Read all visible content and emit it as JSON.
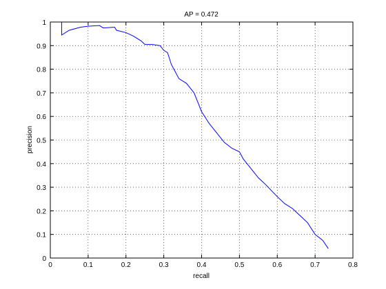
{
  "chart_data": {
    "type": "line",
    "title": "AP = 0.472",
    "xlabel": "recall",
    "ylabel": "precision",
    "x": [
      0.03,
      0.03,
      0.05,
      0.08,
      0.1,
      0.13,
      0.14,
      0.17,
      0.175,
      0.2,
      0.22,
      0.24,
      0.25,
      0.27,
      0.29,
      0.3,
      0.31,
      0.32,
      0.33,
      0.34,
      0.36,
      0.38,
      0.39,
      0.4,
      0.42,
      0.44,
      0.46,
      0.48,
      0.5,
      0.51,
      0.53,
      0.55,
      0.57,
      0.6,
      0.62,
      0.64,
      0.66,
      0.68,
      0.7,
      0.72,
      0.735
    ],
    "values": [
      1.0,
      0.945,
      0.965,
      0.978,
      0.982,
      0.985,
      0.975,
      0.978,
      0.965,
      0.955,
      0.94,
      0.92,
      0.905,
      0.905,
      0.9,
      0.88,
      0.87,
      0.82,
      0.79,
      0.76,
      0.74,
      0.7,
      0.66,
      0.62,
      0.57,
      0.53,
      0.49,
      0.465,
      0.45,
      0.42,
      0.38,
      0.34,
      0.31,
      0.26,
      0.23,
      0.21,
      0.18,
      0.15,
      0.1,
      0.075,
      0.04
    ],
    "color": "#0000ff",
    "xlim": [
      0,
      0.8
    ],
    "xticks": [
      0,
      0.1,
      0.2,
      0.3,
      0.4,
      0.5,
      0.6,
      0.7,
      0.8
    ],
    "ylim": [
      0,
      1
    ],
    "yticks": [
      0,
      0.1,
      0.2,
      0.3,
      0.4,
      0.5,
      0.6,
      0.7,
      0.8,
      0.9,
      1
    ],
    "grid": true
  }
}
